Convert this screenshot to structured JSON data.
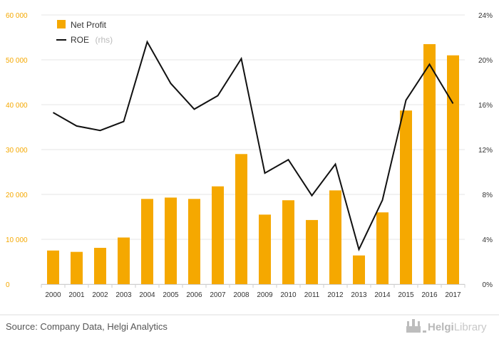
{
  "colors": {
    "bar": "#f5a800",
    "line": "#111111",
    "left_axis_text": "#f5a800",
    "grid": "#e6e6e6"
  },
  "legend": {
    "bar_label": "Net Profit",
    "line_label": "ROE",
    "line_suffix": "(rhs)"
  },
  "source_note": "Source: Company Data, Helgi Analytics",
  "brand": {
    "name_bold": "Helgi",
    "name_light": "Library",
    "icon": "castle-icon"
  },
  "chart_data": {
    "type": "bar",
    "categories": [
      "2000",
      "2001",
      "2002",
      "2003",
      "2004",
      "2005",
      "2006",
      "2007",
      "2008",
      "2009",
      "2010",
      "2011",
      "2012",
      "2013",
      "2014",
      "2015",
      "2016",
      "2017"
    ],
    "series": [
      {
        "name": "Net Profit",
        "type": "bar",
        "axis": "left",
        "values": [
          7500,
          7200,
          8100,
          10400,
          19000,
          19300,
          19000,
          21800,
          29000,
          15500,
          18700,
          14300,
          20900,
          6400,
          16000,
          38700,
          53500,
          51000
        ]
      },
      {
        "name": "ROE",
        "type": "line",
        "axis": "right",
        "unit": "%",
        "values": [
          15.3,
          14.1,
          13.7,
          14.5,
          21.6,
          17.9,
          15.6,
          16.8,
          20.1,
          9.9,
          11.1,
          7.9,
          10.7,
          3.1,
          7.5,
          16.4,
          19.6,
          16.1
        ]
      }
    ],
    "left_axis": {
      "ylim": [
        0,
        60000
      ],
      "ticks": [
        "0",
        "10 000",
        "20 000",
        "30 000",
        "40 000",
        "50 000",
        "60 000"
      ]
    },
    "right_axis": {
      "ylim": [
        0,
        24
      ],
      "ticks": [
        "0%",
        "4%",
        "8%",
        "12%",
        "16%",
        "20%",
        "24%"
      ]
    },
    "grid": true,
    "legend_position": "top-left"
  }
}
